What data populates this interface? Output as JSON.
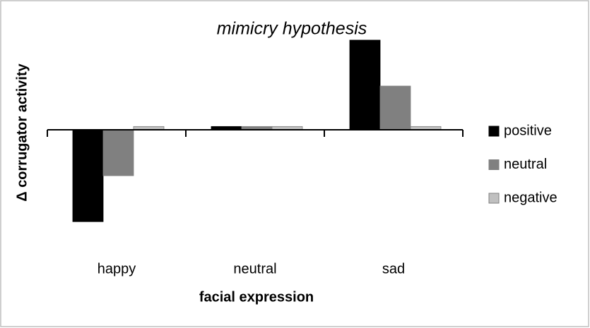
{
  "chart_data": {
    "type": "bar",
    "title": "mimicry hypothesis",
    "x_label": "facial expression",
    "y_label": "Δ corrugator activity",
    "categories": [
      "happy",
      "neutral",
      "sad"
    ],
    "series": [
      {
        "name": "positive",
        "color": "#000000",
        "values": [
          -4.2,
          0.15,
          4.1
        ]
      },
      {
        "name": "neutral",
        "color": "#808080",
        "values": [
          -2.1,
          0.15,
          2.0
        ]
      },
      {
        "name": "negative",
        "color": "#c0c0c0",
        "values": [
          0.15,
          0.15,
          0.15
        ]
      }
    ],
    "ylim": [
      -5,
      5
    ],
    "legend": "right"
  }
}
